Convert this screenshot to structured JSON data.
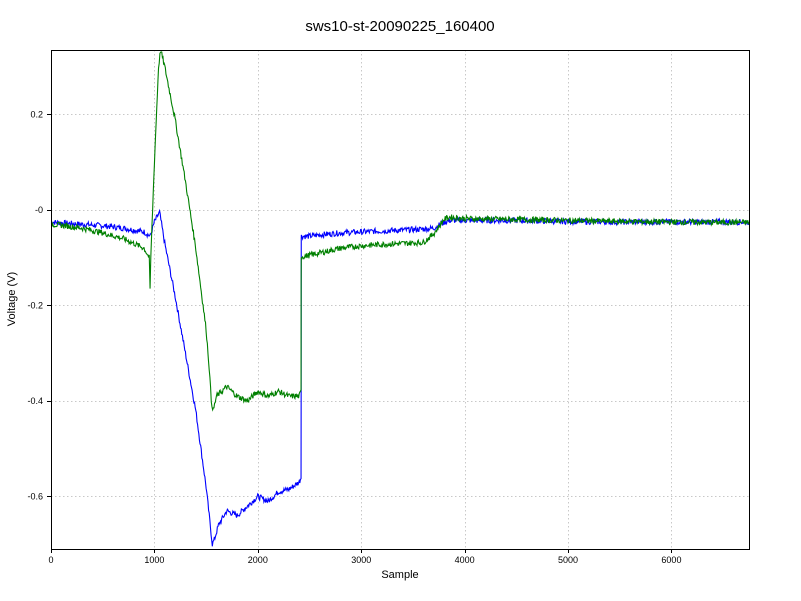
{
  "chart_data": {
    "type": "line",
    "title": "sws10-st-20090225_160400",
    "xlabel": "Sample",
    "ylabel": "Voltage (V)",
    "xlim": [
      0,
      6750
    ],
    "ylim": [
      -0.71,
      0.335
    ],
    "x_ticks": [
      0,
      1000,
      2000,
      3000,
      4000,
      5000,
      6000
    ],
    "x_tick_labels": [
      "0",
      "1000",
      "2000",
      "3000",
      "4000",
      "5000",
      "6000"
    ],
    "y_ticks": [
      0.2,
      0.0,
      -0.2,
      -0.4,
      -0.6
    ],
    "y_tick_labels": [
      "0.2",
      "-0",
      "-0.2",
      "-0.4",
      "-0.6"
    ],
    "grid": true,
    "series": [
      {
        "color": "#0000ff",
        "x": [
          0,
          100,
          300,
          500,
          700,
          900,
          960,
          1000,
          1050,
          1100,
          1200,
          1300,
          1400,
          1500,
          1560,
          1580,
          1620,
          1700,
          1800,
          1900,
          2000,
          2100,
          2200,
          2300,
          2400,
          2418,
          2419,
          2420,
          2421,
          2500,
          2600,
          2800,
          3000,
          3200,
          3400,
          3600,
          3700,
          3800,
          3850,
          4000,
          4500,
          5000,
          5500,
          6000,
          6500,
          6750
        ],
        "y": [
          -0.025,
          -0.027,
          -0.03,
          -0.033,
          -0.038,
          -0.046,
          -0.055,
          -0.025,
          -0.005,
          -0.07,
          -0.18,
          -0.3,
          -0.42,
          -0.58,
          -0.7,
          -0.69,
          -0.66,
          -0.63,
          -0.64,
          -0.62,
          -0.6,
          -0.61,
          -0.59,
          -0.585,
          -0.57,
          -0.56,
          -0.4,
          -0.06,
          -0.055,
          -0.055,
          -0.052,
          -0.048,
          -0.046,
          -0.044,
          -0.042,
          -0.04,
          -0.038,
          -0.026,
          -0.022,
          -0.022,
          -0.022,
          -0.024,
          -0.025,
          -0.025,
          -0.025,
          -0.025
        ]
      },
      {
        "color": "#008000",
        "x": [
          0,
          100,
          300,
          500,
          700,
          900,
          950,
          958,
          965,
          1000,
          1040,
          1060,
          1100,
          1200,
          1300,
          1400,
          1500,
          1530,
          1550,
          1570,
          1600,
          1700,
          1800,
          1900,
          2000,
          2100,
          2200,
          2300,
          2400,
          2418,
          2419,
          2420,
          2421,
          2500,
          2600,
          2800,
          3000,
          3200,
          3400,
          3600,
          3700,
          3800,
          3850,
          4000,
          4500,
          5000,
          5500,
          6000,
          6500,
          6750
        ],
        "y": [
          -0.03,
          -0.032,
          -0.038,
          -0.048,
          -0.06,
          -0.08,
          -0.1,
          -0.17,
          -0.1,
          0.1,
          0.3,
          0.335,
          0.3,
          0.19,
          0.06,
          -0.08,
          -0.25,
          -0.33,
          -0.4,
          -0.42,
          -0.39,
          -0.37,
          -0.39,
          -0.4,
          -0.38,
          -0.39,
          -0.38,
          -0.39,
          -0.39,
          -0.38,
          -0.15,
          -0.1,
          -0.098,
          -0.095,
          -0.09,
          -0.08,
          -0.075,
          -0.072,
          -0.07,
          -0.068,
          -0.05,
          -0.02,
          -0.015,
          -0.018,
          -0.02,
          -0.022,
          -0.024,
          -0.025,
          -0.026,
          -0.026
        ]
      }
    ]
  }
}
